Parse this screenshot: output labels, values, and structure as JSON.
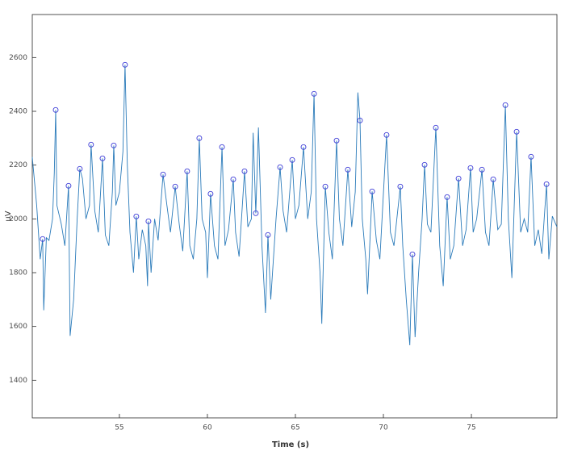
{
  "chart_data": {
    "type": "line",
    "xlabel": "Time (s)",
    "ylabel": "uV",
    "xlim": [
      50.05,
      79.86
    ],
    "ylim": [
      1260,
      2760
    ],
    "xticks": [
      55,
      60,
      65,
      70,
      75
    ],
    "yticks": [
      1400,
      1600,
      1800,
      2000,
      2200,
      2400,
      2600
    ],
    "series": [
      {
        "type": "line",
        "color": "#2b7bba",
        "x": [
          50.05,
          50.3,
          50.5,
          50.64,
          50.7,
          50.85,
          51.0,
          51.2,
          51.3,
          51.38,
          51.45,
          51.7,
          51.9,
          52.11,
          52.2,
          52.4,
          52.6,
          52.75,
          52.9,
          53.1,
          53.3,
          53.39,
          53.6,
          53.8,
          54.04,
          54.2,
          54.4,
          54.6,
          54.68,
          54.8,
          55.0,
          55.2,
          55.32,
          55.45,
          55.6,
          55.8,
          55.96,
          56.1,
          56.3,
          56.5,
          56.6,
          56.65,
          56.8,
          57.0,
          57.2,
          57.48,
          57.7,
          57.9,
          58.17,
          58.4,
          58.6,
          58.85,
          59.0,
          59.2,
          59.4,
          59.54,
          59.7,
          59.9,
          60.0,
          60.18,
          60.4,
          60.6,
          60.83,
          61.0,
          61.2,
          61.47,
          61.6,
          61.8,
          62.11,
          62.3,
          62.5,
          62.6,
          62.75,
          62.9,
          63.1,
          63.3,
          63.44,
          63.6,
          63.9,
          64.13,
          64.3,
          64.5,
          64.82,
          65.0,
          65.2,
          65.46,
          65.7,
          65.9,
          66.06,
          66.2,
          66.4,
          66.5,
          66.7,
          66.9,
          67.1,
          67.34,
          67.5,
          67.7,
          67.98,
          68.2,
          68.4,
          68.55,
          68.67,
          68.8,
          69.0,
          69.1,
          69.36,
          69.6,
          69.8,
          70.18,
          70.4,
          70.6,
          70.96,
          71.1,
          71.3,
          71.5,
          71.65,
          71.8,
          72.0,
          72.2,
          72.34,
          72.5,
          72.7,
          72.98,
          73.2,
          73.4,
          73.62,
          73.8,
          74.0,
          74.27,
          74.5,
          74.7,
          74.95,
          75.1,
          75.3,
          75.6,
          75.8,
          76.0,
          76.24,
          76.5,
          76.7,
          76.93,
          77.1,
          77.3,
          77.57,
          77.8,
          78.0,
          78.2,
          78.39,
          78.6,
          78.8,
          79.0,
          79.27,
          79.4,
          79.6,
          79.86
        ],
        "values": [
          2230,
          2050,
          1850,
          1925,
          1660,
          1930,
          1920,
          2000,
          2170,
          2405,
          2050,
          1980,
          1900,
          2123,
          1565,
          1700,
          2000,
          2186,
          2150,
          2000,
          2050,
          2276,
          2030,
          1950,
          2225,
          1940,
          1900,
          2100,
          2273,
          2050,
          2100,
          2250,
          2573,
          2200,
          1950,
          1800,
          2009,
          1850,
          1960,
          1900,
          1750,
          1991,
          1800,
          2000,
          1920,
          2165,
          2050,
          1950,
          2120,
          1980,
          1880,
          2177,
          1900,
          1850,
          2000,
          2300,
          2000,
          1950,
          1780,
          2093,
          1900,
          1850,
          2267,
          1900,
          1960,
          2147,
          1950,
          1860,
          2177,
          1970,
          2000,
          2320,
          2021,
          2340,
          1900,
          1650,
          1940,
          1700,
          2000,
          2192,
          2030,
          1950,
          2219,
          2000,
          2050,
          2267,
          2000,
          2100,
          2465,
          2000,
          1800,
          1610,
          2120,
          1950,
          1850,
          2291,
          2000,
          1900,
          2183,
          1970,
          2100,
          2470,
          2366,
          2000,
          1850,
          1720,
          2102,
          1920,
          1850,
          2312,
          1950,
          1900,
          2120,
          1900,
          1700,
          1530,
          1868,
          1560,
          1800,
          2000,
          2201,
          1980,
          1950,
          2339,
          1900,
          1750,
          2081,
          1850,
          1900,
          2150,
          1900,
          1960,
          2189,
          1950,
          2000,
          2183,
          1950,
          1900,
          2147,
          1960,
          1980,
          2423,
          2000,
          1780,
          2324,
          1950,
          2000,
          1950,
          2231,
          1900,
          1960,
          1870,
          2129,
          1850,
          2010,
          1970
        ]
      },
      {
        "type": "scatter",
        "color": "#3a3ad6",
        "x": [
          50.64,
          51.38,
          52.11,
          52.75,
          53.39,
          54.04,
          54.68,
          55.32,
          55.96,
          56.65,
          57.48,
          58.17,
          58.85,
          59.54,
          60.18,
          60.83,
          61.47,
          62.11,
          62.75,
          63.44,
          64.13,
          64.82,
          65.46,
          66.06,
          66.7,
          67.34,
          67.98,
          68.67,
          69.36,
          70.18,
          70.96,
          71.65,
          72.34,
          72.98,
          73.62,
          74.27,
          74.95,
          75.6,
          76.24,
          76.93,
          77.57,
          78.39,
          79.27
        ],
        "values": [
          1925,
          2405,
          2123,
          2186,
          2276,
          2225,
          2273,
          2573,
          2009,
          1991,
          2165,
          2120,
          2177,
          2300,
          2093,
          2267,
          2147,
          2177,
          2021,
          1940,
          2192,
          2219,
          2267,
          2465,
          2120,
          2291,
          2183,
          2366,
          2102,
          2312,
          2120,
          1868,
          2201,
          2339,
          2081,
          2150,
          2189,
          2183,
          2147,
          2423,
          2324,
          2231,
          2129
        ]
      }
    ]
  }
}
